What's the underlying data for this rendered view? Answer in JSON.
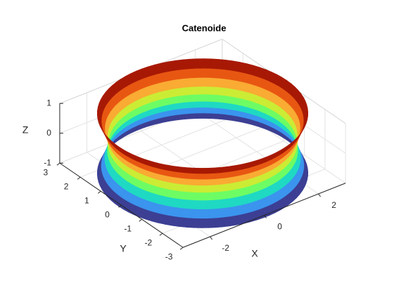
{
  "chart_data": {
    "type": "surface3d",
    "title": "Catenoide",
    "xlabel": "X",
    "ylabel": "Y",
    "zlabel": "Z",
    "xlim": [
      -3,
      3
    ],
    "xticks": [
      -2,
      0,
      2
    ],
    "ylim": [
      -3,
      3
    ],
    "yticks": [
      -3,
      -2,
      -1,
      0,
      1,
      2,
      3
    ],
    "zlim": [
      -1,
      1
    ],
    "zticks": [
      -1,
      0,
      1
    ],
    "grid": true,
    "surface": {
      "z": [
        -1,
        -0.75,
        -0.5,
        -0.25,
        0,
        0.25,
        0.5,
        0.75,
        1
      ],
      "r": [
        3.1,
        2.98,
        2.88,
        2.8,
        2.78,
        2.8,
        2.88,
        2.98,
        3.1
      ]
    },
    "colormap": [
      "#30123b",
      "#4662d7",
      "#36aaf9",
      "#1ae4b6",
      "#72fe5e",
      "#c8ef34",
      "#faba39",
      "#f66b19",
      "#ca2a04",
      "#7a0403"
    ]
  }
}
